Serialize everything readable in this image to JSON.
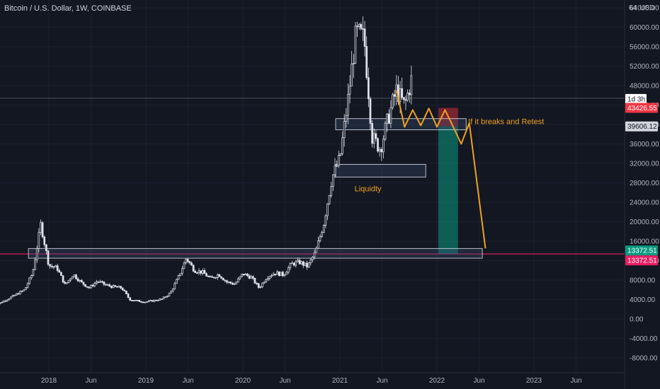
{
  "header": {
    "title": "Bitcoin / U.S. Dollar, 1W, COINBASE",
    "scale_mode": "64",
    "currency": "USD"
  },
  "colors": {
    "background": "#131722",
    "up": "#e0e3eb",
    "annotation": "#f0a020",
    "target_zone": "#089981",
    "stop_zone": "#f23645",
    "level_line": "#e91e63"
  },
  "chart_data": {
    "type": "candlestick",
    "ylim": [
      -10000,
      66000
    ],
    "xlim": [
      "2017-06",
      "2023-12"
    ],
    "y_ticks": [
      "64000.00",
      "60000.00",
      "56000.00",
      "52000.00",
      "48000.00",
      "44000.00",
      "40000.00",
      "36000.00",
      "32000.00",
      "28000.00",
      "24000.00",
      "20000.00",
      "16000.00",
      "12000.00",
      "8000.00",
      "4000.00",
      "0.00",
      "-4000.00",
      "-8000.00"
    ],
    "x_ticks": [
      "2018",
      "Jun",
      "2019",
      "Jun",
      "2020",
      "Jun",
      "2021",
      "Jun",
      "2022",
      "Jun",
      "2023",
      "Jun"
    ],
    "price_labels": [
      {
        "text": "1d 3h",
        "style": "countdown"
      },
      {
        "text": "43426.55",
        "style": "red"
      },
      {
        "text": "39606.12",
        "style": "gray"
      },
      {
        "text": "13372.51",
        "style": "green"
      },
      {
        "text": "13372.51",
        "style": "pink"
      }
    ],
    "horizontal_levels": [
      {
        "name": "current-price-line",
        "value": 45400
      },
      {
        "name": "support-level-line",
        "value": 13372.51
      }
    ],
    "zones": [
      {
        "name": "resistance-zone",
        "date_start": "2021-01",
        "date_end": "2022-04",
        "low": 38900,
        "high": 41200
      },
      {
        "name": "liquidity-zone",
        "date_start": "2021-01",
        "date_end": "2021-11",
        "low": 29200,
        "high": 31800,
        "label": "Liquidty"
      },
      {
        "name": "support-zone",
        "date_start": "2017-11",
        "date_end": "2022-06",
        "low": 12500,
        "high": 14500
      }
    ],
    "annotations": [
      {
        "text": "If it breaks and Retest",
        "date": "2022-04",
        "value": 40500
      }
    ],
    "projection_path": [
      [
        "2021-08",
        47000
      ],
      [
        "2021-09",
        39500
      ],
      [
        "2021-10",
        43000
      ],
      [
        "2021-11",
        39800
      ],
      [
        "2021-12",
        43300
      ],
      [
        "2022-01",
        39500
      ],
      [
        "2022-02",
        43000
      ],
      [
        "2022-03",
        39600
      ],
      [
        "2022-04",
        36000
      ],
      [
        "2022-05",
        40300
      ],
      [
        "2022-07",
        14500
      ]
    ],
    "position": {
      "date_start": "2022-01",
      "date_end": "2022-03",
      "entry": 39606.12,
      "stop": 43426.55,
      "target": 13372.51
    },
    "series": [
      {
        "name": "BTCUSD",
        "points": [
          [
            "2017-06",
            2500
          ],
          [
            "2017-08",
            4200
          ],
          [
            "2017-10",
            6000
          ],
          [
            "2017-11",
            9500
          ],
          [
            "2017-12",
            19500
          ],
          [
            "2018-01",
            11000
          ],
          [
            "2018-02",
            10500
          ],
          [
            "2018-03",
            7000
          ],
          [
            "2018-04",
            9200
          ],
          [
            "2018-05",
            7500
          ],
          [
            "2018-06",
            6400
          ],
          [
            "2018-07",
            7800
          ],
          [
            "2018-08",
            7000
          ],
          [
            "2018-09",
            6600
          ],
          [
            "2018-10",
            6400
          ],
          [
            "2018-11",
            4000
          ],
          [
            "2018-12",
            3700
          ],
          [
            "2019-01",
            3500
          ],
          [
            "2019-02",
            3800
          ],
          [
            "2019-03",
            4100
          ],
          [
            "2019-04",
            5300
          ],
          [
            "2019-05",
            8500
          ],
          [
            "2019-06",
            12500
          ],
          [
            "2019-07",
            10000
          ],
          [
            "2019-08",
            9600
          ],
          [
            "2019-09",
            8300
          ],
          [
            "2019-10",
            9200
          ],
          [
            "2019-11",
            7600
          ],
          [
            "2019-12",
            7200
          ],
          [
            "2020-01",
            9300
          ],
          [
            "2020-02",
            8600
          ],
          [
            "2020-03",
            6400
          ],
          [
            "2020-04",
            8700
          ],
          [
            "2020-05",
            9500
          ],
          [
            "2020-06",
            9100
          ],
          [
            "2020-07",
            11300
          ],
          [
            "2020-08",
            11700
          ],
          [
            "2020-09",
            10800
          ],
          [
            "2020-10",
            13800
          ],
          [
            "2020-11",
            19700
          ],
          [
            "2020-12",
            29000
          ],
          [
            "2021-01",
            33100
          ],
          [
            "2021-02",
            45200
          ],
          [
            "2021-03",
            58800
          ],
          [
            "2021-04",
            57700
          ],
          [
            "2021-05",
            37300
          ],
          [
            "2021-06",
            35000
          ],
          [
            "2021-07",
            41500
          ],
          [
            "2021-08",
            47100
          ],
          [
            "2021-09",
            43800
          ],
          [
            "2021-10",
            50200
          ]
        ]
      }
    ]
  }
}
